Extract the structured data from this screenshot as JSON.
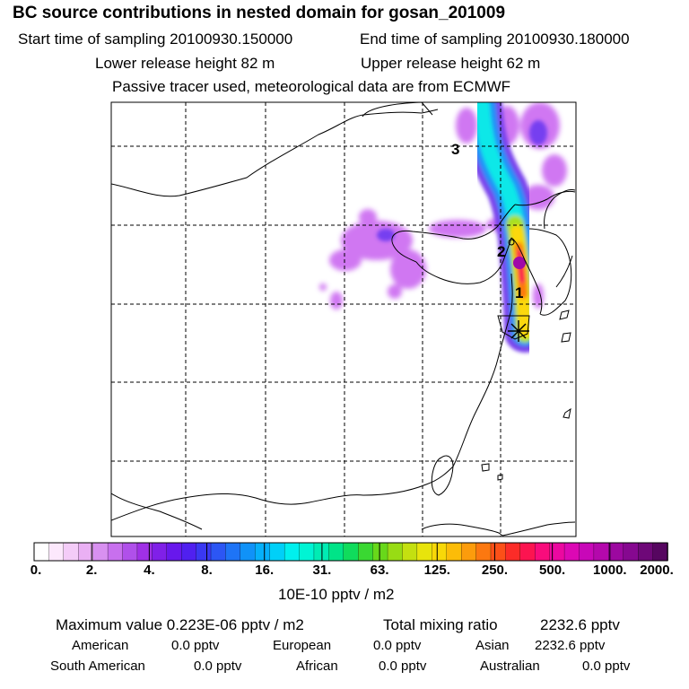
{
  "header": {
    "title": "BC  source contributions in nested domain for gosan_201009",
    "start_label": "Start time of sampling 20100930.150000",
    "end_label": "End time of sampling 20100930.180000",
    "lower_label": "Lower release height   82 m",
    "upper_label": "Upper release height   62 m",
    "info_line": "Passive tracer used, meteorological data are from ECMWF"
  },
  "markers": {
    "m1": "1",
    "m2": "2",
    "m3": "3"
  },
  "colorbar": {
    "unit_label": "10E-10 pptv / m2",
    "tick_labels": [
      "0.",
      "2.",
      "4.",
      "8.",
      "16.",
      "31.",
      "63.",
      "125.",
      "250.",
      "500.",
      "1000.",
      "2000."
    ],
    "colors": [
      "#ffffff",
      "#fce8fc",
      "#f4ccf8",
      "#eab0f4",
      "#d890f0",
      "#c870ee",
      "#b050ea",
      "#a030e6",
      "#8020e8",
      "#6818ec",
      "#5020f0",
      "#3a38f2",
      "#2c56f4",
      "#1e74f6",
      "#1092f8",
      "#06b0fa",
      "#00d0f8",
      "#00f0ee",
      "#00f4d4",
      "#00ecb4",
      "#00e488",
      "#10dc5c",
      "#3ad832",
      "#68d81a",
      "#98dc14",
      "#c4e010",
      "#e8e40c",
      "#f8d808",
      "#fcbc08",
      "#fc9c0c",
      "#fc7810",
      "#fc5018",
      "#fc2c28",
      "#fc1450",
      "#f80c7c",
      "#ec08a0",
      "#dc08b4",
      "#c808b8",
      "#b408ac",
      "#9c08a0",
      "#860890",
      "#6e0878",
      "#560660"
    ]
  },
  "stats": {
    "max_label": "Maximum value  0.223E-06 pptv / m2",
    "total_label": "Total mixing ratio",
    "total_value": "2232.6 pptv",
    "american_label": "American",
    "american_value": "0.0 pptv",
    "european_label": "European",
    "european_value": "0.0 pptv",
    "asian_label": "Asian",
    "asian_value": "2232.6 pptv",
    "south_american_label": "South American",
    "south_american_value": "0.0 pptv",
    "african_label": "African",
    "african_value": "0.0 pptv",
    "australian_label": "Australian",
    "australian_value": "0.0 pptv"
  },
  "chart_data": {
    "type": "heatmap",
    "title": "BC  source contributions in nested domain for gosan_201009",
    "colorbar_levels": [
      0,
      2,
      4,
      8,
      16,
      31,
      63,
      125,
      250,
      500,
      1000,
      2000
    ],
    "colorbar_unit": "10E-10 pptv / m2",
    "maximum_value": "0.223E-06 pptv / m2",
    "total_mixing_ratio_pptv": 2232.6,
    "grid": true
  }
}
